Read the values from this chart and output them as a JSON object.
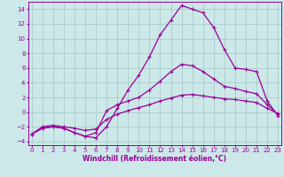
{
  "xlabel": "Windchill (Refroidissement éolien,°C)",
  "xlim": [
    0,
    23
  ],
  "ylim": [
    -4.5,
    15
  ],
  "yticks": [
    -4,
    -2,
    0,
    2,
    4,
    6,
    8,
    10,
    12,
    14
  ],
  "xticks": [
    0,
    1,
    2,
    3,
    4,
    5,
    6,
    7,
    8,
    9,
    10,
    11,
    12,
    13,
    14,
    15,
    16,
    17,
    18,
    19,
    20,
    21,
    22,
    23
  ],
  "background_color": "#cce8e8",
  "grid_color": "#aacccc",
  "line_color": "#990099",
  "line1_x": [
    0,
    1,
    2,
    3,
    4,
    5,
    6,
    7,
    8,
    9,
    10,
    11,
    12,
    13,
    14,
    15,
    16,
    17,
    18,
    19,
    20,
    21,
    22,
    23
  ],
  "line1_y": [
    -3,
    -2.2,
    -2,
    -2.2,
    -2.8,
    -3.3,
    -3.5,
    -2.0,
    0.5,
    3.0,
    5.0,
    7.5,
    10.5,
    12.5,
    14.5,
    14.0,
    13.5,
    11.5,
    8.5,
    6.0,
    5.8,
    5.5,
    1.5,
    -0.5
  ],
  "line2_x": [
    0,
    1,
    2,
    3,
    4,
    5,
    6,
    7,
    8,
    9,
    10,
    11,
    12,
    13,
    14,
    15,
    16,
    17,
    18,
    19,
    20,
    21,
    22,
    23
  ],
  "line2_y": [
    -3,
    -2.2,
    -2,
    -2.2,
    -2.8,
    -3.3,
    -2.8,
    0.2,
    1.0,
    1.5,
    2.0,
    3.0,
    4.2,
    5.5,
    6.5,
    6.3,
    5.5,
    4.5,
    3.5,
    3.2,
    2.8,
    2.5,
    1.0,
    -0.3
  ],
  "line3_x": [
    0,
    1,
    2,
    3,
    4,
    5,
    6,
    7,
    8,
    9,
    10,
    11,
    12,
    13,
    14,
    15,
    16,
    17,
    18,
    19,
    20,
    21,
    22,
    23
  ],
  "line3_y": [
    -3,
    -2.0,
    -1.8,
    -2.0,
    -2.2,
    -2.5,
    -2.3,
    -1.0,
    -0.3,
    0.2,
    0.6,
    1.0,
    1.5,
    1.9,
    2.3,
    2.4,
    2.2,
    2.0,
    1.8,
    1.7,
    1.5,
    1.3,
    0.5,
    -0.2
  ],
  "marker": "+",
  "markersize": 3.5,
  "linewidth": 0.9,
  "tick_fontsize": 5.0,
  "label_fontsize": 5.5
}
